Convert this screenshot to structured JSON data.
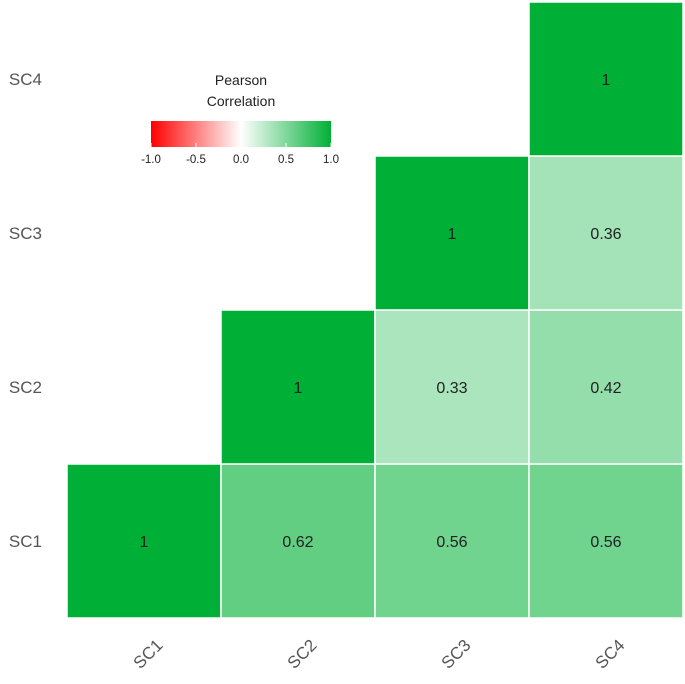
{
  "chart_data": {
    "type": "heatmap",
    "title": "",
    "x_categories": [
      "SC1",
      "SC2",
      "SC3",
      "SC4"
    ],
    "y_categories": [
      "SC1",
      "SC2",
      "SC3",
      "SC4"
    ],
    "cells": [
      {
        "x": "SC1",
        "y": "SC1",
        "value": 1,
        "label": "1"
      },
      {
        "x": "SC2",
        "y": "SC1",
        "value": 0.62,
        "label": "0.62"
      },
      {
        "x": "SC3",
        "y": "SC1",
        "value": 0.56,
        "label": "0.56"
      },
      {
        "x": "SC4",
        "y": "SC1",
        "value": 0.56,
        "label": "0.56"
      },
      {
        "x": "SC2",
        "y": "SC2",
        "value": 1,
        "label": "1"
      },
      {
        "x": "SC3",
        "y": "SC2",
        "value": 0.33,
        "label": "0.33"
      },
      {
        "x": "SC4",
        "y": "SC2",
        "value": 0.42,
        "label": "0.42"
      },
      {
        "x": "SC3",
        "y": "SC3",
        "value": 1,
        "label": "1"
      },
      {
        "x": "SC4",
        "y": "SC3",
        "value": 0.36,
        "label": "0.36"
      },
      {
        "x": "SC4",
        "y": "SC4",
        "value": 1,
        "label": "1"
      }
    ],
    "legend": {
      "title_lines": [
        "Pearson",
        "Correlation"
      ],
      "range": [
        -1.0,
        1.0
      ],
      "ticks": [
        "-1.0",
        "-0.5",
        "0.0",
        "0.5",
        "1.0"
      ],
      "colors": {
        "low": "#ff0000",
        "mid": "#ffffff",
        "high": "#00b036"
      },
      "placement": "top-left"
    }
  }
}
